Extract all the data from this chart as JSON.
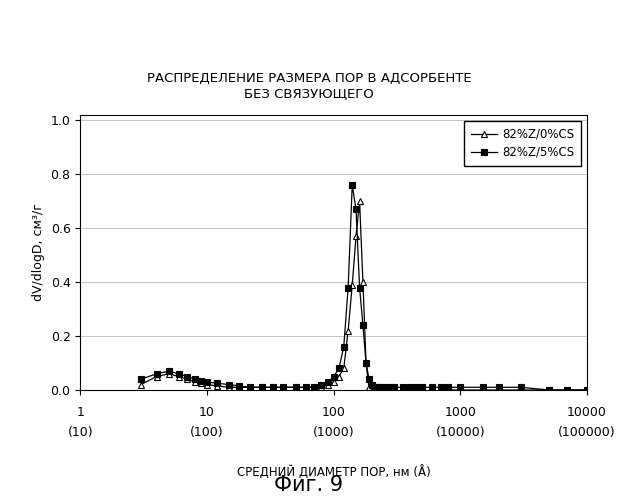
{
  "title": "РАСПРЕДЕЛЕНИЕ РАЗМЕРА ПОР В АДСОРБЕНТЕ\nБЕЗ СВЯЗУЮЩЕГО",
  "xlabel": "СРЕДНИЙ ДИАМЕТР ПОР, нм (Å)",
  "ylabel": "dV/dlogD, см³/г",
  "caption": "Фиг. 9",
  "xlim": [
    1,
    10000
  ],
  "ylim": [
    0.0,
    1.0
  ],
  "yticks": [
    0.0,
    0.2,
    0.4,
    0.6,
    0.8,
    1.0
  ],
  "legend": [
    "82%Z/0%CS",
    "82%Z/5%CS"
  ],
  "series1_x": [
    3,
    4,
    5,
    6,
    7,
    8,
    9,
    10,
    12,
    15,
    18,
    22,
    27,
    33,
    40,
    50,
    60,
    70,
    80,
    90,
    100,
    110,
    120,
    130,
    140,
    150,
    160,
    170,
    180,
    190,
    200,
    210,
    220,
    240,
    260,
    280,
    300,
    350,
    400,
    450,
    500,
    600,
    700,
    800,
    1000,
    1500,
    2000,
    3000,
    5000,
    7000,
    10000
  ],
  "series1_y": [
    0.02,
    0.05,
    0.06,
    0.05,
    0.04,
    0.03,
    0.025,
    0.02,
    0.015,
    0.01,
    0.01,
    0.01,
    0.01,
    0.01,
    0.01,
    0.01,
    0.01,
    0.01,
    0.01,
    0.02,
    0.03,
    0.05,
    0.08,
    0.22,
    0.39,
    0.57,
    0.7,
    0.4,
    0.1,
    0.01,
    0.0,
    -0.01,
    -0.01,
    -0.01,
    -0.01,
    -0.01,
    -0.01,
    -0.01,
    -0.01,
    -0.01,
    -0.01,
    -0.01,
    -0.01,
    0.0,
    0.0,
    0.0,
    0.0,
    0.0,
    0.0,
    0.0,
    0.0
  ],
  "series2_x": [
    3,
    4,
    5,
    6,
    7,
    8,
    9,
    10,
    12,
    15,
    18,
    22,
    27,
    33,
    40,
    50,
    60,
    70,
    80,
    90,
    100,
    110,
    120,
    130,
    140,
    150,
    160,
    170,
    180,
    190,
    200,
    210,
    220,
    230,
    240,
    260,
    280,
    300,
    350,
    400,
    450,
    500,
    600,
    700,
    800,
    1000,
    1500,
    2000,
    3000,
    5000,
    7000,
    10000
  ],
  "series2_y": [
    0.04,
    0.06,
    0.07,
    0.06,
    0.05,
    0.04,
    0.035,
    0.03,
    0.025,
    0.02,
    0.015,
    0.01,
    0.01,
    0.01,
    0.01,
    0.01,
    0.01,
    0.01,
    0.02,
    0.03,
    0.05,
    0.08,
    0.16,
    0.38,
    0.76,
    0.67,
    0.38,
    0.24,
    0.1,
    0.04,
    0.02,
    0.01,
    0.01,
    0.01,
    0.01,
    0.01,
    0.01,
    0.01,
    0.01,
    0.01,
    0.01,
    0.01,
    0.01,
    0.01,
    0.01,
    0.01,
    0.01,
    0.01,
    0.01,
    0.0,
    0.0,
    0.0
  ],
  "bg_color": "#ffffff",
  "grid_color": "#aaaaaa"
}
